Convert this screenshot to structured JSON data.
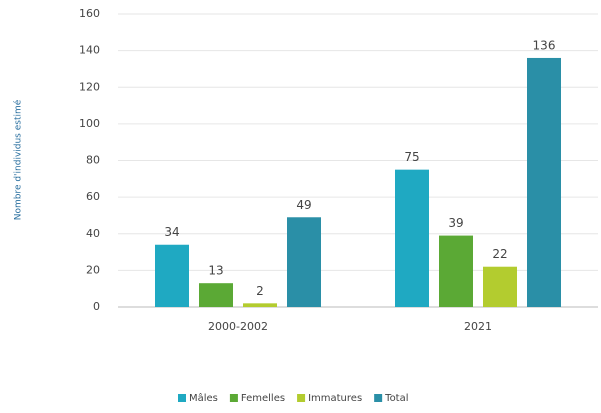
{
  "chart_data": {
    "type": "bar",
    "y_label": "Nombre d'individus estimé",
    "categories": [
      "2000-2002",
      "2021"
    ],
    "series": [
      {
        "name": "Mâles",
        "color": "#1fa9c2",
        "values": [
          34,
          75
        ]
      },
      {
        "name": "Femelles",
        "color": "#5ba935",
        "values": [
          13,
          39
        ]
      },
      {
        "name": "Immatures",
        "color": "#b3cc2f",
        "values": [
          2,
          22
        ]
      },
      {
        "name": "Total",
        "color": "#2a8fa7",
        "values": [
          49,
          136
        ]
      }
    ],
    "ylim": [
      0,
      160
    ],
    "yticks": [
      0,
      20,
      40,
      60,
      80,
      100,
      120,
      140,
      160
    ],
    "grid": true,
    "legend": "bottom"
  }
}
